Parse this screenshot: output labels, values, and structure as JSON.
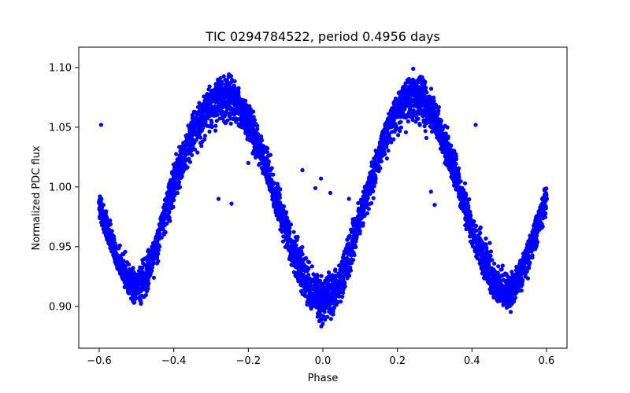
{
  "chart_data": {
    "type": "scatter",
    "title": "TIC 0294784522, period 0.4956 days",
    "xlabel": "Phase",
    "ylabel": "Normalized PDC flux",
    "xlim": [
      -0.655,
      0.655
    ],
    "ylim": [
      0.865,
      1.117
    ],
    "xticks": [
      -0.6,
      -0.4,
      -0.2,
      0.0,
      0.2,
      0.4,
      0.6
    ],
    "xtick_labels": [
      "−0.6",
      "−0.4",
      "−0.2",
      "0.0",
      "0.2",
      "0.4",
      "0.6"
    ],
    "yticks": [
      0.9,
      0.95,
      1.0,
      1.05,
      1.1
    ],
    "ytick_labels": [
      "0.90",
      "0.95",
      "1.00",
      "1.05",
      "1.10"
    ],
    "grid": false,
    "marker_color": "#0000ff",
    "series": [
      {
        "name": "flux",
        "points": [
          [
            -0.6,
            0.987
          ],
          [
            -0.58,
            0.962
          ],
          [
            -0.56,
            0.944
          ],
          [
            -0.54,
            0.928
          ],
          [
            -0.52,
            0.918
          ],
          [
            -0.5,
            0.915
          ],
          [
            -0.48,
            0.922
          ],
          [
            -0.46,
            0.94
          ],
          [
            -0.44,
            0.962
          ],
          [
            -0.42,
            0.985
          ],
          [
            -0.4,
            1.005
          ],
          [
            -0.38,
            1.024
          ],
          [
            -0.36,
            1.04
          ],
          [
            -0.34,
            1.053
          ],
          [
            -0.32,
            1.064
          ],
          [
            -0.3,
            1.071
          ],
          [
            -0.28,
            1.075
          ],
          [
            -0.26,
            1.076
          ],
          [
            -0.24,
            1.074
          ],
          [
            -0.22,
            1.068
          ],
          [
            -0.2,
            1.056
          ],
          [
            -0.18,
            1.04
          ],
          [
            -0.16,
            1.022
          ],
          [
            -0.14,
            1.003
          ],
          [
            -0.12,
            0.983
          ],
          [
            -0.1,
            0.964
          ],
          [
            -0.08,
            0.946
          ],
          [
            -0.06,
            0.93
          ],
          [
            -0.04,
            0.917
          ],
          [
            -0.02,
            0.908
          ],
          [
            0.0,
            0.904
          ],
          [
            0.02,
            0.908
          ],
          [
            0.04,
            0.918
          ],
          [
            0.06,
            0.934
          ],
          [
            0.08,
            0.954
          ],
          [
            0.1,
            0.976
          ],
          [
            0.12,
            0.998
          ],
          [
            0.14,
            1.02
          ],
          [
            0.16,
            1.04
          ],
          [
            0.18,
            1.056
          ],
          [
            0.2,
            1.068
          ],
          [
            0.22,
            1.075
          ],
          [
            0.24,
            1.077
          ],
          [
            0.26,
            1.074
          ],
          [
            0.28,
            1.068
          ],
          [
            0.3,
            1.057
          ],
          [
            0.32,
            1.042
          ],
          [
            0.34,
            1.024
          ],
          [
            0.36,
            1.004
          ],
          [
            0.38,
            0.984
          ],
          [
            0.4,
            0.964
          ],
          [
            0.42,
            0.946
          ],
          [
            0.44,
            0.93
          ],
          [
            0.46,
            0.918
          ],
          [
            0.48,
            0.912
          ],
          [
            0.5,
            0.913
          ],
          [
            0.52,
            0.922
          ],
          [
            0.54,
            0.938
          ],
          [
            0.56,
            0.957
          ],
          [
            0.58,
            0.975
          ],
          [
            0.6,
            0.99
          ]
        ],
        "upper_envelope": [
          [
            -0.6,
            1.006
          ],
          [
            -0.55,
            0.955
          ],
          [
            -0.5,
            0.938
          ],
          [
            -0.45,
            0.958
          ],
          [
            -0.4,
            1.025
          ],
          [
            -0.35,
            1.065
          ],
          [
            -0.3,
            1.09
          ],
          [
            -0.25,
            1.1
          ],
          [
            -0.2,
            1.075
          ],
          [
            -0.15,
            1.04
          ],
          [
            -0.1,
            0.985
          ],
          [
            -0.05,
            0.955
          ],
          [
            0.0,
            0.93
          ],
          [
            0.05,
            0.948
          ],
          [
            0.1,
            0.995
          ],
          [
            0.15,
            1.04
          ],
          [
            0.2,
            1.085
          ],
          [
            0.25,
            1.105
          ],
          [
            0.3,
            1.08
          ],
          [
            0.35,
            1.045
          ],
          [
            0.4,
            0.985
          ],
          [
            0.45,
            0.955
          ],
          [
            0.5,
            0.93
          ],
          [
            0.55,
            0.955
          ],
          [
            0.6,
            1.006
          ]
        ],
        "lower_envelope": [
          [
            -0.6,
            0.97
          ],
          [
            -0.55,
            0.928
          ],
          [
            -0.5,
            0.89
          ],
          [
            -0.45,
            0.92
          ],
          [
            -0.4,
            0.975
          ],
          [
            -0.35,
            1.015
          ],
          [
            -0.3,
            1.04
          ],
          [
            -0.25,
            1.045
          ],
          [
            -0.2,
            1.035
          ],
          [
            -0.15,
            1.0
          ],
          [
            -0.1,
            0.945
          ],
          [
            -0.05,
            0.9
          ],
          [
            0.0,
            0.872
          ],
          [
            0.05,
            0.895
          ],
          [
            0.1,
            0.955
          ],
          [
            0.15,
            1.0
          ],
          [
            0.2,
            1.04
          ],
          [
            0.25,
            1.045
          ],
          [
            0.3,
            1.035
          ],
          [
            0.35,
            1.0
          ],
          [
            0.4,
            0.945
          ],
          [
            0.45,
            0.905
          ],
          [
            0.5,
            0.89
          ],
          [
            0.55,
            0.915
          ],
          [
            0.6,
            0.97
          ]
        ],
        "outliers": [
          [
            -0.595,
            1.052
          ],
          [
            -0.28,
            0.99
          ],
          [
            -0.245,
            0.986
          ],
          [
            -0.135,
            0.993
          ],
          [
            -0.055,
            1.014
          ],
          [
            -0.02,
            0.999
          ],
          [
            -0.005,
            1.007
          ],
          [
            0.02,
            0.995
          ],
          [
            0.07,
            0.99
          ],
          [
            0.3,
            0.985
          ],
          [
            0.29,
            0.996
          ],
          [
            0.335,
            1.02
          ],
          [
            0.41,
            1.052
          ],
          [
            0.245,
            1.06
          ],
          [
            -0.2,
            1.02
          ]
        ]
      }
    ]
  }
}
